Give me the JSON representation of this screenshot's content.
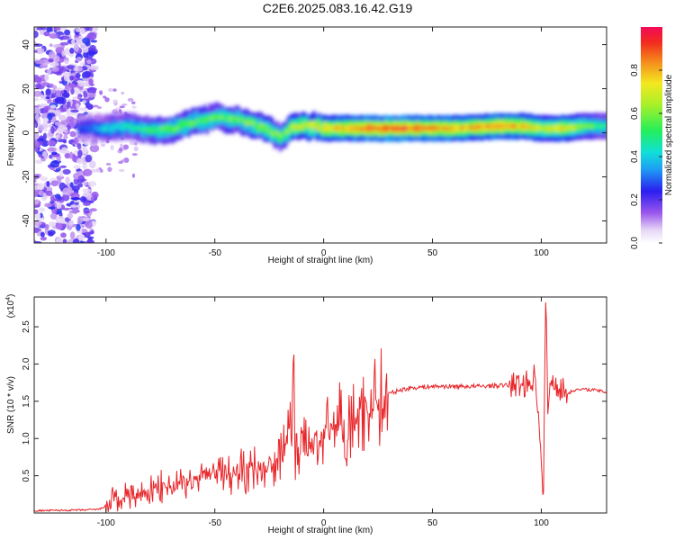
{
  "title": "C2E6.2025.083.16.42.G19",
  "chart_data": [
    {
      "type": "heatmap",
      "xlabel": "Height of straight line (km)",
      "ylabel": "Frequency (Hz)",
      "xlim": [
        -133,
        130
      ],
      "ylim": [
        -50,
        48
      ],
      "xticks": [
        -100,
        -50,
        0,
        50,
        100
      ],
      "yticks": [
        -40,
        -20,
        0,
        20,
        40
      ],
      "colorbar": {
        "label": "Normalized spectral amplitude",
        "range": [
          0,
          1
        ],
        "ticks": [
          0.0,
          0.2,
          0.4,
          0.6,
          0.8
        ],
        "tick_labels": [
          "0.0",
          "0.2",
          "0.4",
          "0.6",
          "0.8"
        ]
      },
      "ridge": [
        {
          "x": -133,
          "y": 0,
          "amp": 0.25
        },
        {
          "x": -110,
          "y": 2,
          "amp": 0.3
        },
        {
          "x": -100,
          "y": 2,
          "amp": 0.45
        },
        {
          "x": -90,
          "y": 3,
          "amp": 0.5
        },
        {
          "x": -80,
          "y": 1,
          "amp": 0.55
        },
        {
          "x": -70,
          "y": 2,
          "amp": 0.6
        },
        {
          "x": -60,
          "y": 5,
          "amp": 0.6
        },
        {
          "x": -50,
          "y": 7,
          "amp": 0.6
        },
        {
          "x": -40,
          "y": 6,
          "amp": 0.6
        },
        {
          "x": -30,
          "y": 3,
          "amp": 0.65
        },
        {
          "x": -25,
          "y": 1,
          "amp": 0.65
        },
        {
          "x": -20,
          "y": -2,
          "amp": 0.6
        },
        {
          "x": -15,
          "y": 3,
          "amp": 0.7
        },
        {
          "x": -5,
          "y": 3,
          "amp": 0.75
        },
        {
          "x": 0,
          "y": 2,
          "amp": 0.8
        },
        {
          "x": 10,
          "y": 2,
          "amp": 0.85
        },
        {
          "x": 20,
          "y": 2,
          "amp": 0.95
        },
        {
          "x": 40,
          "y": 2,
          "amp": 0.95
        },
        {
          "x": 60,
          "y": 2,
          "amp": 0.85
        },
        {
          "x": 80,
          "y": 3,
          "amp": 0.9
        },
        {
          "x": 90,
          "y": 3,
          "amp": 0.85
        },
        {
          "x": 100,
          "y": 2,
          "amp": 0.7
        },
        {
          "x": 110,
          "y": 2,
          "amp": 0.8
        },
        {
          "x": 120,
          "y": 3,
          "amp": 0.6
        },
        {
          "x": 130,
          "y": 3,
          "amp": 0.5
        }
      ]
    },
    {
      "type": "line",
      "xlabel": "Height of straight line (km)",
      "ylabel": "SNR (10 * v/v)",
      "y_multiplier": "(x10",
      "y_multiplier_exp": "4",
      "y_multiplier_close": ")",
      "xlim": [
        -133,
        130
      ],
      "ylim": [
        0,
        2.9
      ],
      "xticks": [
        -100,
        -50,
        0,
        50,
        100
      ],
      "yticks": [
        0.5,
        1.0,
        1.5,
        2.0,
        2.5
      ],
      "ytick_labels": [
        "0.5",
        "1.0",
        "1.5",
        "2.0",
        "2.5"
      ],
      "color": "#e8262a",
      "series": [
        {
          "x": [
            -133,
            -110,
            -103,
            -100,
            -97,
            -94,
            -90,
            -85,
            -80,
            -75,
            -70,
            -65,
            -60,
            -55,
            -50,
            -45,
            -40,
            -35,
            -30,
            -25,
            -20,
            -17,
            -15,
            -14,
            -13,
            -12,
            -10,
            -5,
            0,
            5,
            8,
            10,
            12,
            15,
            20,
            25,
            30,
            35,
            40,
            50,
            60,
            70,
            80,
            90,
            95,
            97,
            99,
            100,
            101,
            102,
            103,
            105,
            108,
            110,
            112,
            115,
            120,
            125,
            130
          ],
          "y": [
            0.03,
            0.04,
            0.05,
            0.1,
            0.2,
            0.15,
            0.25,
            0.2,
            0.3,
            0.35,
            0.3,
            0.45,
            0.4,
            0.5,
            0.55,
            0.5,
            0.6,
            0.55,
            0.65,
            0.6,
            0.75,
            0.9,
            1.2,
            2.05,
            0.8,
            0.85,
            0.85,
            0.95,
            1.05,
            1.1,
            1.35,
            0.7,
            1.2,
            1.25,
            1.4,
            1.55,
            1.6,
            1.65,
            1.68,
            1.7,
            1.7,
            1.7,
            1.71,
            1.72,
            1.75,
            1.85,
            1.3,
            0.55,
            0.25,
            2.9,
            1.5,
            1.75,
            1.7,
            1.65,
            1.6,
            1.65,
            1.66,
            1.65,
            1.62
          ]
        }
      ]
    }
  ]
}
